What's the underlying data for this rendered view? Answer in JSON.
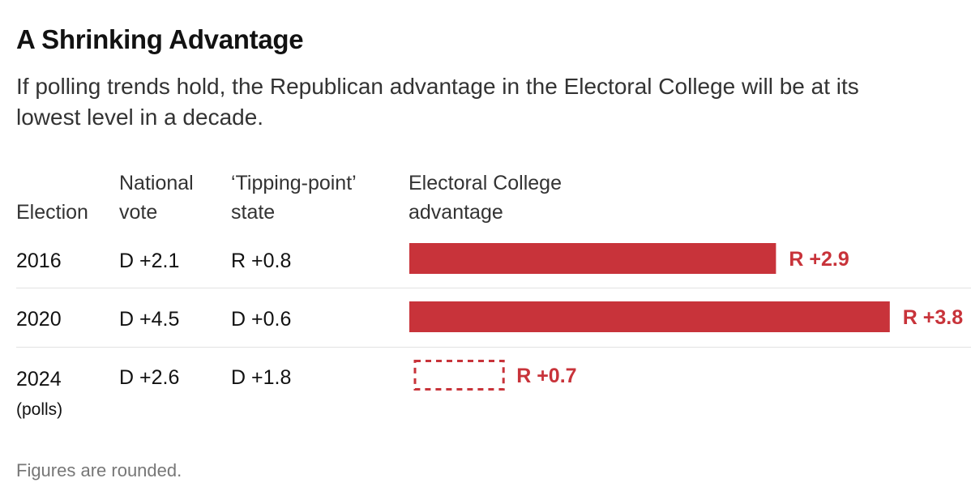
{
  "title": "A Shrinking Advantage",
  "subtitle": "If polling trends hold, the Republican advantage in the Electoral College will be at its lowest level in a decade.",
  "columns": {
    "election": "Election",
    "national_vote": [
      "National",
      "vote"
    ],
    "tipping_point": [
      "‘Tipping-point’",
      "state"
    ],
    "advantage": [
      "Electoral College",
      "advantage"
    ]
  },
  "rows": [
    {
      "year": "2016",
      "note": "",
      "national_vote": "D +2.1",
      "tipping_point": "R +0.8",
      "advantage_label": "R +2.9"
    },
    {
      "year": "2020",
      "note": "",
      "national_vote": "D +4.5",
      "tipping_point": "D +0.6",
      "advantage_label": "R +3.8"
    },
    {
      "year": "2024",
      "note": "(polls)",
      "national_vote": "D +2.6",
      "tipping_point": "D +1.8",
      "advantage_label": "R +0.7"
    }
  ],
  "footnote": "Figures are rounded.",
  "colors": {
    "republican": "#c8333a",
    "text": "#121212",
    "muted": "#777777",
    "divider": "#e2e2e2"
  },
  "chart_data": {
    "type": "bar",
    "orientation": "horizontal",
    "categories": [
      "2016",
      "2020",
      "2024"
    ],
    "values": [
      2.9,
      3.8,
      0.7
    ],
    "value_labels": [
      "R +2.9",
      "R +3.8",
      "R +0.7"
    ],
    "projected": [
      false,
      false,
      true
    ],
    "projected_style": "dashed outline",
    "xlim": [
      0,
      3.8
    ],
    "grid": false,
    "legend": "none"
  }
}
